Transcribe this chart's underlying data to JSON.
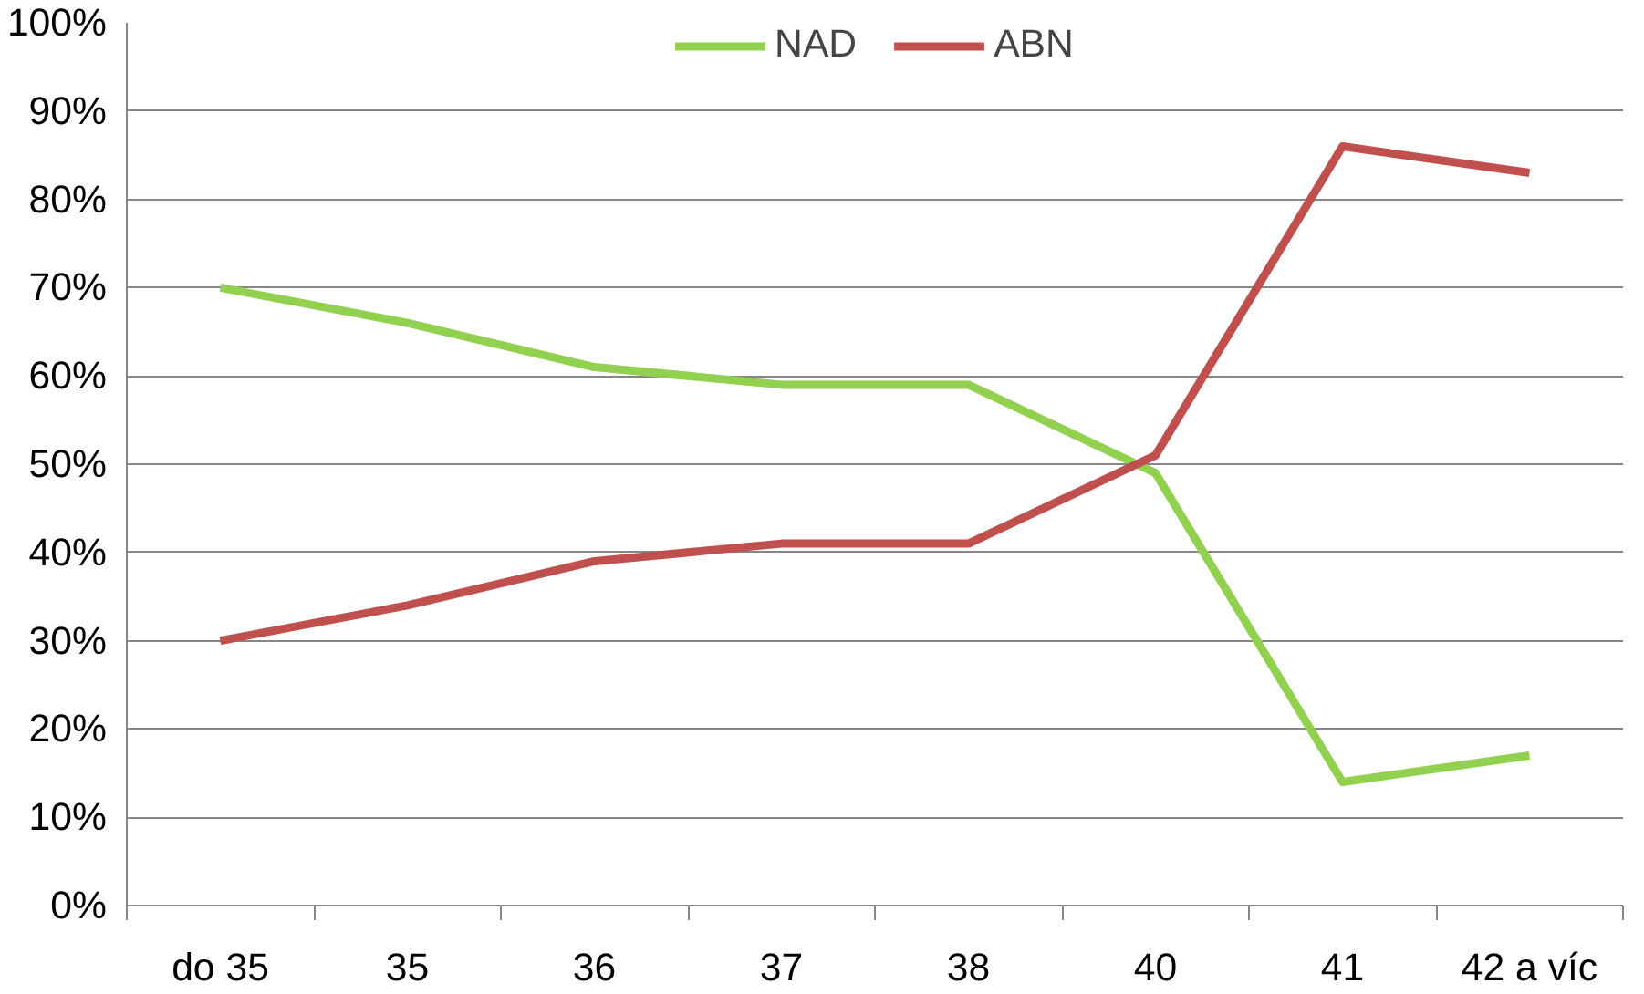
{
  "chart_data": {
    "type": "line",
    "categories": [
      "do 35",
      "35",
      "36",
      "37",
      "38",
      "40",
      "41",
      "42 a víc"
    ],
    "series": [
      {
        "name": "NAD",
        "color": "#92d050",
        "values": [
          70,
          66,
          61,
          59,
          59,
          49,
          14,
          17
        ]
      },
      {
        "name": "ABN",
        "color": "#c0504d",
        "values": [
          30,
          34,
          39,
          41,
          41,
          51,
          86,
          83
        ]
      }
    ],
    "ylim": [
      0,
      100
    ],
    "yticks": [
      {
        "value": 0,
        "label": "0%"
      },
      {
        "value": 10,
        "label": "10%"
      },
      {
        "value": 20,
        "label": "20%"
      },
      {
        "value": 30,
        "label": "30%"
      },
      {
        "value": 40,
        "label": "40%"
      },
      {
        "value": 50,
        "label": "50%"
      },
      {
        "value": 60,
        "label": "60%"
      },
      {
        "value": 70,
        "label": "70%"
      },
      {
        "value": 80,
        "label": "80%"
      },
      {
        "value": 90,
        "label": "90%"
      },
      {
        "value": 100,
        "label": "100%"
      }
    ],
    "grid": "y",
    "legend": "top",
    "marker": "none",
    "line_style": "solid"
  }
}
